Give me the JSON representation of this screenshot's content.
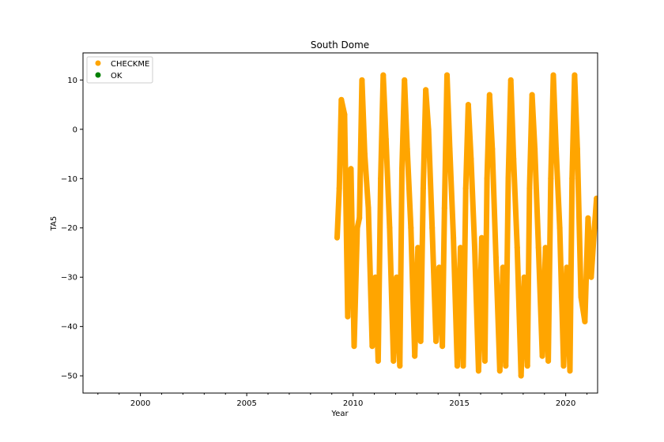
{
  "chart_data": {
    "type": "scatter",
    "title": "South Dome",
    "xlabel": "Year",
    "ylabel": "TA5",
    "xlim": [
      1997.3,
      2021.5
    ],
    "ylim": [
      -53.5,
      15.5
    ],
    "x_ticks": [
      {
        "value": 2000,
        "label": "2000"
      },
      {
        "value": 2005,
        "label": "2005"
      },
      {
        "value": 2010,
        "label": "2010"
      },
      {
        "value": 2015,
        "label": "2015"
      },
      {
        "value": 2020,
        "label": "2020"
      }
    ],
    "y_ticks": [
      {
        "value": 10,
        "label": "10"
      },
      {
        "value": 0,
        "label": "0"
      },
      {
        "value": -10,
        "label": "−10"
      },
      {
        "value": -20,
        "label": "−20"
      },
      {
        "value": -30,
        "label": "−30"
      },
      {
        "value": -40,
        "label": "−40"
      },
      {
        "value": -50,
        "label": "−50"
      }
    ],
    "grid": false,
    "legend_position": "top-left",
    "series": [
      {
        "name": "CHECKME",
        "color": "#ffa500",
        "x": [
          2009.25,
          2009.35,
          2009.45,
          2009.6,
          2009.75,
          2009.9,
          2010.05,
          2010.2,
          2010.3,
          2010.42,
          2010.55,
          2010.72,
          2010.9,
          2011.05,
          2011.18,
          2011.3,
          2011.42,
          2011.55,
          2011.72,
          2011.9,
          2012.05,
          2012.2,
          2012.3,
          2012.42,
          2012.55,
          2012.72,
          2012.9,
          2013.05,
          2013.18,
          2013.3,
          2013.42,
          2013.55,
          2013.72,
          2013.9,
          2014.05,
          2014.2,
          2014.3,
          2014.42,
          2014.55,
          2014.72,
          2014.9,
          2015.05,
          2015.18,
          2015.3,
          2015.42,
          2015.55,
          2015.72,
          2015.9,
          2016.05,
          2016.2,
          2016.3,
          2016.42,
          2016.55,
          2016.72,
          2016.9,
          2017.05,
          2017.18,
          2017.3,
          2017.42,
          2017.55,
          2017.72,
          2017.9,
          2018.05,
          2018.2,
          2018.3,
          2018.42,
          2018.55,
          2018.72,
          2018.9,
          2019.05,
          2019.18,
          2019.3,
          2019.42,
          2019.55,
          2019.72,
          2019.9,
          2020.05,
          2020.2,
          2020.3,
          2020.42,
          2020.55,
          2020.72,
          2020.9,
          2021.05,
          2021.2,
          2021.35,
          2021.45
        ],
        "y": [
          -22,
          -12,
          6,
          3,
          -38,
          -8,
          -44,
          -20,
          -18,
          10,
          -5,
          -16,
          -44,
          -30,
          -47,
          -10,
          11,
          -2,
          -20,
          -47,
          -30,
          -48,
          -8,
          10,
          -4,
          -20,
          -46,
          -24,
          -43,
          -12,
          8,
          0,
          -20,
          -43,
          -28,
          -44,
          -16,
          11,
          -4,
          -22,
          -48,
          -24,
          -48,
          -12,
          5,
          -6,
          -24,
          -49,
          -22,
          -47,
          -10,
          7,
          -4,
          -26,
          -49,
          -28,
          -48,
          -10,
          10,
          -6,
          -24,
          -50,
          -30,
          -48,
          -12,
          7,
          -4,
          -24,
          -46,
          -24,
          -47,
          -10,
          11,
          -4,
          -20,
          -48,
          -28,
          -49,
          -10,
          11,
          -4,
          -34,
          -39,
          -18,
          -30,
          -20,
          -14
        ],
        "x_range": [
          2009.3,
          2021.5
        ],
        "y_range": [
          -50.5,
          12.2
        ]
      },
      {
        "name": "OK",
        "color": "#008000",
        "x": [],
        "y": []
      }
    ]
  }
}
